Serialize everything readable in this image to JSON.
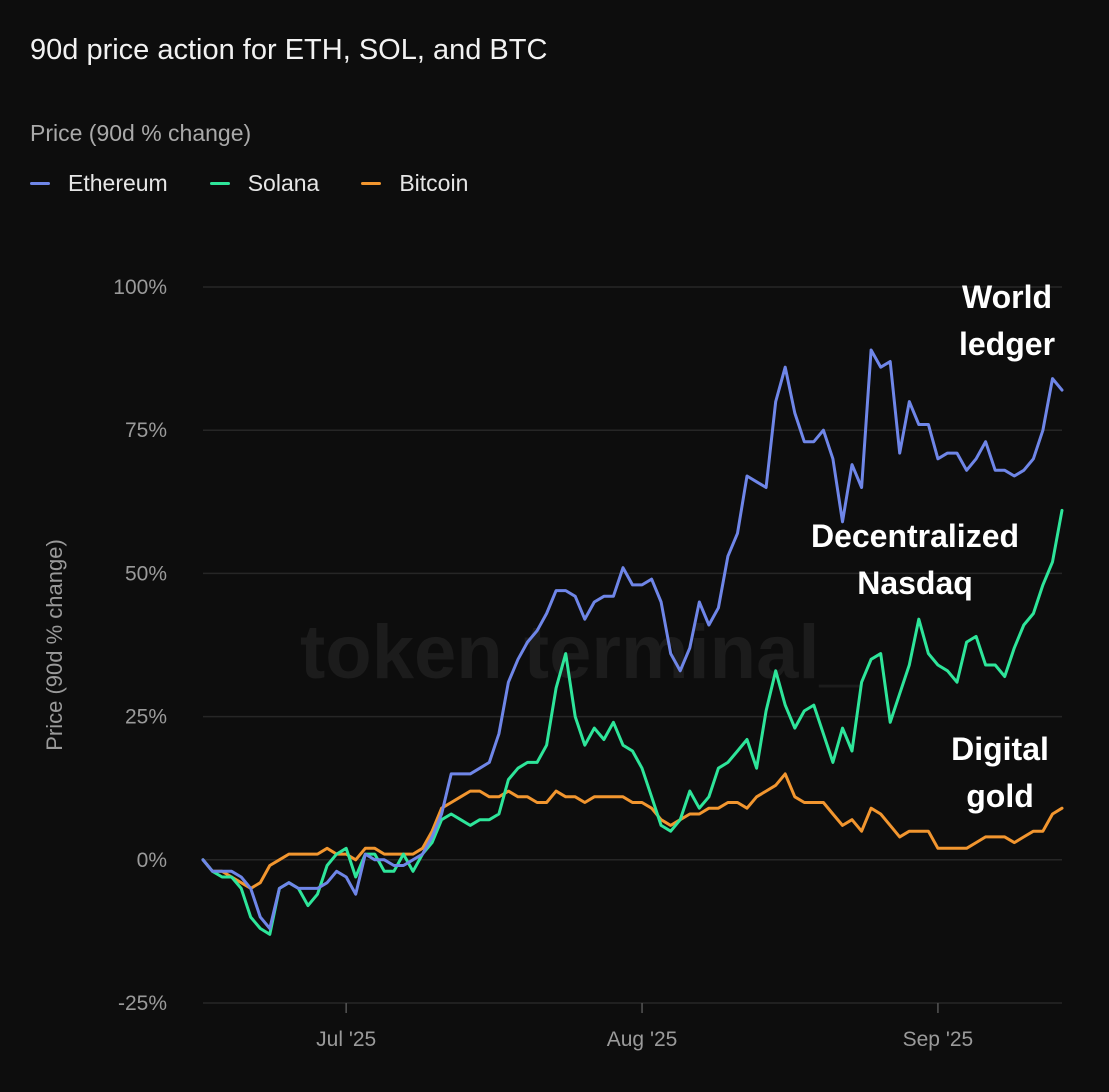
{
  "chart_data": {
    "type": "line",
    "title": "90d price action for ETH, SOL, and BTC",
    "subtitle": "Price (90d % change)",
    "ylabel": "Price (90d % change)",
    "watermark": "token terminal_",
    "ylim": [
      -25,
      100
    ],
    "yticks": [
      {
        "value": 100,
        "label": "100%"
      },
      {
        "value": 75,
        "label": "75%"
      },
      {
        "value": 50,
        "label": "50%"
      },
      {
        "value": 25,
        "label": "25%"
      },
      {
        "value": 0,
        "label": "0%"
      },
      {
        "value": -25,
        "label": "-25%"
      }
    ],
    "xrange": [
      "2025-06-16",
      "2025-09-14"
    ],
    "xticks": [
      {
        "date": "2025-07-01",
        "label": "Jul '25"
      },
      {
        "date": "2025-08-01",
        "label": "Aug '25"
      },
      {
        "date": "2025-09-01",
        "label": "Sep '25"
      }
    ],
    "legend_position": "top-left",
    "grid": true,
    "series": [
      {
        "name": "Ethereum",
        "color": "#6f86e8",
        "values": [
          [
            "2025-06-16",
            0
          ],
          [
            "2025-06-17",
            -2
          ],
          [
            "2025-06-18",
            -2
          ],
          [
            "2025-06-19",
            -2
          ],
          [
            "2025-06-20",
            -3
          ],
          [
            "2025-06-21",
            -5
          ],
          [
            "2025-06-22",
            -10
          ],
          [
            "2025-06-23",
            -12
          ],
          [
            "2025-06-24",
            -5
          ],
          [
            "2025-06-25",
            -4
          ],
          [
            "2025-06-26",
            -5
          ],
          [
            "2025-06-27",
            -5
          ],
          [
            "2025-06-28",
            -5
          ],
          [
            "2025-06-29",
            -4
          ],
          [
            "2025-06-30",
            -2
          ],
          [
            "2025-07-01",
            -3
          ],
          [
            "2025-07-02",
            -6
          ],
          [
            "2025-07-03",
            1
          ],
          [
            "2025-07-04",
            0
          ],
          [
            "2025-07-05",
            0
          ],
          [
            "2025-07-06",
            -1
          ],
          [
            "2025-07-07",
            -1
          ],
          [
            "2025-07-08",
            0
          ],
          [
            "2025-07-09",
            1
          ],
          [
            "2025-07-10",
            4
          ],
          [
            "2025-07-11",
            8
          ],
          [
            "2025-07-12",
            15
          ],
          [
            "2025-07-13",
            15
          ],
          [
            "2025-07-14",
            15
          ],
          [
            "2025-07-15",
            16
          ],
          [
            "2025-07-16",
            17
          ],
          [
            "2025-07-17",
            22
          ],
          [
            "2025-07-18",
            31
          ],
          [
            "2025-07-19",
            35
          ],
          [
            "2025-07-20",
            38
          ],
          [
            "2025-07-21",
            40
          ],
          [
            "2025-07-22",
            43
          ],
          [
            "2025-07-23",
            47
          ],
          [
            "2025-07-24",
            47
          ],
          [
            "2025-07-25",
            46
          ],
          [
            "2025-07-26",
            42
          ],
          [
            "2025-07-27",
            45
          ],
          [
            "2025-07-28",
            46
          ],
          [
            "2025-07-29",
            46
          ],
          [
            "2025-07-30",
            51
          ],
          [
            "2025-07-31",
            48
          ],
          [
            "2025-08-01",
            48
          ],
          [
            "2025-08-02",
            49
          ],
          [
            "2025-08-03",
            45
          ],
          [
            "2025-08-04",
            36
          ],
          [
            "2025-08-05",
            33
          ],
          [
            "2025-08-06",
            37
          ],
          [
            "2025-08-07",
            45
          ],
          [
            "2025-08-08",
            41
          ],
          [
            "2025-08-09",
            44
          ],
          [
            "2025-08-10",
            53
          ],
          [
            "2025-08-11",
            57
          ],
          [
            "2025-08-12",
            67
          ],
          [
            "2025-08-13",
            66
          ],
          [
            "2025-08-14",
            65
          ],
          [
            "2025-08-15",
            80
          ],
          [
            "2025-08-16",
            86
          ],
          [
            "2025-08-17",
            78
          ],
          [
            "2025-08-18",
            73
          ],
          [
            "2025-08-19",
            73
          ],
          [
            "2025-08-20",
            75
          ],
          [
            "2025-08-21",
            70
          ],
          [
            "2025-08-22",
            59
          ],
          [
            "2025-08-23",
            69
          ],
          [
            "2025-08-24",
            65
          ],
          [
            "2025-08-25",
            89
          ],
          [
            "2025-08-26",
            86
          ],
          [
            "2025-08-27",
            87
          ],
          [
            "2025-08-28",
            71
          ],
          [
            "2025-08-29",
            80
          ],
          [
            "2025-08-30",
            76
          ],
          [
            "2025-08-31",
            76
          ],
          [
            "2025-09-01",
            70
          ],
          [
            "2025-09-02",
            71
          ],
          [
            "2025-09-03",
            71
          ],
          [
            "2025-09-04",
            68
          ],
          [
            "2025-09-05",
            70
          ],
          [
            "2025-09-06",
            73
          ],
          [
            "2025-09-07",
            68
          ],
          [
            "2025-09-08",
            68
          ],
          [
            "2025-09-09",
            67
          ],
          [
            "2025-09-10",
            68
          ],
          [
            "2025-09-11",
            70
          ],
          [
            "2025-09-12",
            75
          ],
          [
            "2025-09-13",
            84
          ],
          [
            "2025-09-14",
            82
          ]
        ]
      },
      {
        "name": "Solana",
        "color": "#2ee59a",
        "values": [
          [
            "2025-06-16",
            0
          ],
          [
            "2025-06-17",
            -2
          ],
          [
            "2025-06-18",
            -3
          ],
          [
            "2025-06-19",
            -3
          ],
          [
            "2025-06-20",
            -5
          ],
          [
            "2025-06-21",
            -10
          ],
          [
            "2025-06-22",
            -12
          ],
          [
            "2025-06-23",
            -13
          ],
          [
            "2025-06-24",
            -5
          ],
          [
            "2025-06-25",
            -4
          ],
          [
            "2025-06-26",
            -5
          ],
          [
            "2025-06-27",
            -8
          ],
          [
            "2025-06-28",
            -6
          ],
          [
            "2025-06-29",
            -1
          ],
          [
            "2025-06-30",
            1
          ],
          [
            "2025-07-01",
            2
          ],
          [
            "2025-07-02",
            -3
          ],
          [
            "2025-07-03",
            1
          ],
          [
            "2025-07-04",
            1
          ],
          [
            "2025-07-05",
            -2
          ],
          [
            "2025-07-06",
            -2
          ],
          [
            "2025-07-07",
            1
          ],
          [
            "2025-07-08",
            -2
          ],
          [
            "2025-07-09",
            1
          ],
          [
            "2025-07-10",
            3
          ],
          [
            "2025-07-11",
            7
          ],
          [
            "2025-07-12",
            8
          ],
          [
            "2025-07-13",
            7
          ],
          [
            "2025-07-14",
            6
          ],
          [
            "2025-07-15",
            7
          ],
          [
            "2025-07-16",
            7
          ],
          [
            "2025-07-17",
            8
          ],
          [
            "2025-07-18",
            14
          ],
          [
            "2025-07-19",
            16
          ],
          [
            "2025-07-20",
            17
          ],
          [
            "2025-07-21",
            17
          ],
          [
            "2025-07-22",
            20
          ],
          [
            "2025-07-23",
            30
          ],
          [
            "2025-07-24",
            36
          ],
          [
            "2025-07-25",
            25
          ],
          [
            "2025-07-26",
            20
          ],
          [
            "2025-07-27",
            23
          ],
          [
            "2025-07-28",
            21
          ],
          [
            "2025-07-29",
            24
          ],
          [
            "2025-07-30",
            20
          ],
          [
            "2025-07-31",
            19
          ],
          [
            "2025-08-01",
            16
          ],
          [
            "2025-08-02",
            11
          ],
          [
            "2025-08-03",
            6
          ],
          [
            "2025-08-04",
            5
          ],
          [
            "2025-08-05",
            7
          ],
          [
            "2025-08-06",
            12
          ],
          [
            "2025-08-07",
            9
          ],
          [
            "2025-08-08",
            11
          ],
          [
            "2025-08-09",
            16
          ],
          [
            "2025-08-10",
            17
          ],
          [
            "2025-08-11",
            19
          ],
          [
            "2025-08-12",
            21
          ],
          [
            "2025-08-13",
            16
          ],
          [
            "2025-08-14",
            26
          ],
          [
            "2025-08-15",
            33
          ],
          [
            "2025-08-16",
            27
          ],
          [
            "2025-08-17",
            23
          ],
          [
            "2025-08-18",
            26
          ],
          [
            "2025-08-19",
            27
          ],
          [
            "2025-08-20",
            22
          ],
          [
            "2025-08-21",
            17
          ],
          [
            "2025-08-22",
            23
          ],
          [
            "2025-08-23",
            19
          ],
          [
            "2025-08-24",
            31
          ],
          [
            "2025-08-25",
            35
          ],
          [
            "2025-08-26",
            36
          ],
          [
            "2025-08-27",
            24
          ],
          [
            "2025-08-28",
            29
          ],
          [
            "2025-08-29",
            34
          ],
          [
            "2025-08-30",
            42
          ],
          [
            "2025-08-31",
            36
          ],
          [
            "2025-09-01",
            34
          ],
          [
            "2025-09-02",
            33
          ],
          [
            "2025-09-03",
            31
          ],
          [
            "2025-09-04",
            38
          ],
          [
            "2025-09-05",
            39
          ],
          [
            "2025-09-06",
            34
          ],
          [
            "2025-09-07",
            34
          ],
          [
            "2025-09-08",
            32
          ],
          [
            "2025-09-09",
            37
          ],
          [
            "2025-09-10",
            41
          ],
          [
            "2025-09-11",
            43
          ],
          [
            "2025-09-12",
            48
          ],
          [
            "2025-09-13",
            52
          ],
          [
            "2025-09-14",
            61
          ]
        ]
      },
      {
        "name": "Bitcoin",
        "color": "#f2962f",
        "values": [
          [
            "2025-06-16",
            0
          ],
          [
            "2025-06-17",
            -2
          ],
          [
            "2025-06-18",
            -2
          ],
          [
            "2025-06-19",
            -3
          ],
          [
            "2025-06-20",
            -4
          ],
          [
            "2025-06-21",
            -5
          ],
          [
            "2025-06-22",
            -4
          ],
          [
            "2025-06-23",
            -1
          ],
          [
            "2025-06-24",
            0
          ],
          [
            "2025-06-25",
            1
          ],
          [
            "2025-06-26",
            1
          ],
          [
            "2025-06-27",
            1
          ],
          [
            "2025-06-28",
            1
          ],
          [
            "2025-06-29",
            2
          ],
          [
            "2025-06-30",
            1
          ],
          [
            "2025-07-01",
            1
          ],
          [
            "2025-07-02",
            0
          ],
          [
            "2025-07-03",
            2
          ],
          [
            "2025-07-04",
            2
          ],
          [
            "2025-07-05",
            1
          ],
          [
            "2025-07-06",
            1
          ],
          [
            "2025-07-07",
            1
          ],
          [
            "2025-07-08",
            1
          ],
          [
            "2025-07-09",
            2
          ],
          [
            "2025-07-10",
            5
          ],
          [
            "2025-07-11",
            9
          ],
          [
            "2025-07-12",
            10
          ],
          [
            "2025-07-13",
            11
          ],
          [
            "2025-07-14",
            12
          ],
          [
            "2025-07-15",
            12
          ],
          [
            "2025-07-16",
            11
          ],
          [
            "2025-07-17",
            11
          ],
          [
            "2025-07-18",
            12
          ],
          [
            "2025-07-19",
            11
          ],
          [
            "2025-07-20",
            11
          ],
          [
            "2025-07-21",
            10
          ],
          [
            "2025-07-22",
            10
          ],
          [
            "2025-07-23",
            12
          ],
          [
            "2025-07-24",
            11
          ],
          [
            "2025-07-25",
            11
          ],
          [
            "2025-07-26",
            10
          ],
          [
            "2025-07-27",
            11
          ],
          [
            "2025-07-28",
            11
          ],
          [
            "2025-07-29",
            11
          ],
          [
            "2025-07-30",
            11
          ],
          [
            "2025-07-31",
            10
          ],
          [
            "2025-08-01",
            10
          ],
          [
            "2025-08-02",
            9
          ],
          [
            "2025-08-03",
            7
          ],
          [
            "2025-08-04",
            6
          ],
          [
            "2025-08-05",
            7
          ],
          [
            "2025-08-06",
            8
          ],
          [
            "2025-08-07",
            8
          ],
          [
            "2025-08-08",
            9
          ],
          [
            "2025-08-09",
            9
          ],
          [
            "2025-08-10",
            10
          ],
          [
            "2025-08-11",
            10
          ],
          [
            "2025-08-12",
            9
          ],
          [
            "2025-08-13",
            11
          ],
          [
            "2025-08-14",
            12
          ],
          [
            "2025-08-15",
            13
          ],
          [
            "2025-08-16",
            15
          ],
          [
            "2025-08-17",
            11
          ],
          [
            "2025-08-18",
            10
          ],
          [
            "2025-08-19",
            10
          ],
          [
            "2025-08-20",
            10
          ],
          [
            "2025-08-21",
            8
          ],
          [
            "2025-08-22",
            6
          ],
          [
            "2025-08-23",
            7
          ],
          [
            "2025-08-24",
            5
          ],
          [
            "2025-08-25",
            9
          ],
          [
            "2025-08-26",
            8
          ],
          [
            "2025-08-27",
            6
          ],
          [
            "2025-08-28",
            4
          ],
          [
            "2025-08-29",
            5
          ],
          [
            "2025-08-30",
            5
          ],
          [
            "2025-08-31",
            5
          ],
          [
            "2025-09-01",
            2
          ],
          [
            "2025-09-02",
            2
          ],
          [
            "2025-09-03",
            2
          ],
          [
            "2025-09-04",
            2
          ],
          [
            "2025-09-05",
            3
          ],
          [
            "2025-09-06",
            4
          ],
          [
            "2025-09-07",
            4
          ],
          [
            "2025-09-08",
            4
          ],
          [
            "2025-09-09",
            3
          ],
          [
            "2025-09-10",
            4
          ],
          [
            "2025-09-11",
            5
          ],
          [
            "2025-09-12",
            5
          ],
          [
            "2025-09-13",
            8
          ],
          [
            "2025-09-14",
            9
          ]
        ]
      }
    ],
    "annotations": [
      {
        "lines": [
          "World",
          "ledger"
        ],
        "series": "Ethereum"
      },
      {
        "lines": [
          "Decentralized",
          "Nasdaq"
        ],
        "series": "Solana"
      },
      {
        "lines": [
          "Digital",
          "gold"
        ],
        "series": "Bitcoin"
      }
    ]
  }
}
